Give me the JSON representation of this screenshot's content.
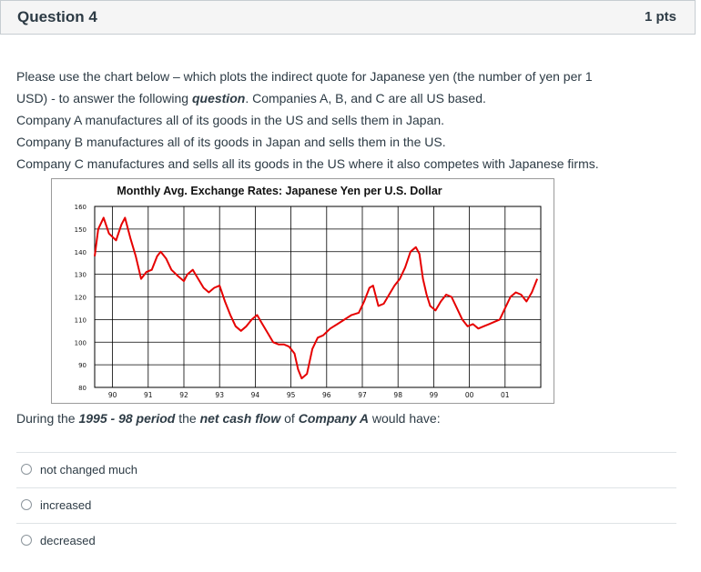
{
  "question": {
    "title": "Question 4",
    "points": "1 pts"
  },
  "prompt": {
    "line1a": "Please use the chart below – which plots the indirect quote for Japanese yen (the number of yen per 1",
    "line1b_pre": "USD) - to answer the following ",
    "line1b_em": "question",
    "line1b_post": ". Companies A, B, and C are all US based.",
    "line2": "Company A manufactures all of its goods in the US and sells them in Japan.",
    "line3": "Company B manufactures all of its goods in Japan and sells them in the US.",
    "line4": "Company C manufactures and sells all its goods in the US where it also competes with Japanese firms."
  },
  "question_line": {
    "pre": "During the ",
    "period": "1995 - 98 period",
    "mid1": " the ",
    "ncf": "net cash flow",
    "mid2": " of ",
    "company": "Company A",
    "post": " would have:"
  },
  "answers": [
    {
      "label": "not changed much"
    },
    {
      "label": "increased"
    },
    {
      "label": "decreased"
    }
  ],
  "colors": {
    "line": "#e60000",
    "grid": "#000000"
  },
  "chart_data": {
    "type": "line",
    "title": "Monthly Avg. Exchange Rates: Japanese Yen per U.S. Dollar",
    "xlabel": "",
    "ylabel": "",
    "ylim": [
      80,
      160
    ],
    "xlim": [
      1989.5,
      2002
    ],
    "yticks": [
      "160",
      "150",
      "140",
      "130",
      "120",
      "110",
      "100",
      "90",
      "80"
    ],
    "xticks": [
      "90",
      "91",
      "92",
      "93",
      "94",
      "95",
      "96",
      "97",
      "98",
      "99",
      "00",
      "01"
    ],
    "grid": true,
    "series": [
      {
        "x": [
          1989.5,
          1989.6,
          1989.75,
          1989.9,
          1990.1,
          1990.25,
          1990.35,
          1990.5,
          1990.65,
          1990.8,
          1990.95,
          1991.1,
          1991.25,
          1991.35,
          1991.5,
          1991.65,
          1991.85,
          1992.0,
          1992.1,
          1992.25,
          1992.4,
          1992.55,
          1992.7,
          1992.85,
          1993.0,
          1993.15,
          1993.3,
          1993.45,
          1993.6,
          1993.75,
          1993.9,
          1994.05,
          1994.2,
          1994.35,
          1994.5,
          1994.65,
          1994.8,
          1994.95,
          1995.1,
          1995.2,
          1995.3,
          1995.45,
          1995.6,
          1995.75,
          1995.9,
          1996.1,
          1996.3,
          1996.5,
          1996.7,
          1996.9,
          1997.05,
          1997.2,
          1997.3,
          1997.45,
          1997.6,
          1997.75,
          1997.9,
          1998.05,
          1998.2,
          1998.35,
          1998.5,
          1998.6,
          1998.7,
          1998.8,
          1998.9,
          1999.05,
          1999.2,
          1999.35,
          1999.5,
          1999.65,
          1999.8,
          1999.95,
          2000.1,
          2000.25,
          2000.4,
          2000.55,
          2000.7,
          2000.85,
          2001.0,
          2001.15,
          2001.3,
          2001.45,
          2001.6,
          2001.75,
          2001.9
        ],
        "y": [
          138,
          150,
          155,
          148,
          145,
          152,
          155,
          146,
          138,
          128,
          131,
          132,
          138,
          140,
          137,
          132,
          129,
          127,
          130,
          132,
          128,
          124,
          122,
          124,
          125,
          118,
          112,
          107,
          105,
          107,
          110,
          112,
          108,
          104,
          100,
          99,
          99,
          98,
          95,
          88,
          84,
          86,
          97,
          102,
          103,
          106,
          108,
          110,
          112,
          113,
          118,
          124,
          125,
          116,
          117,
          121,
          125,
          128,
          133,
          140,
          142,
          139,
          128,
          121,
          116,
          114,
          118,
          121,
          120,
          115,
          110,
          107,
          108,
          106,
          107,
          108,
          109,
          110,
          115,
          120,
          122,
          121,
          118,
          122,
          128
        ]
      }
    ]
  }
}
